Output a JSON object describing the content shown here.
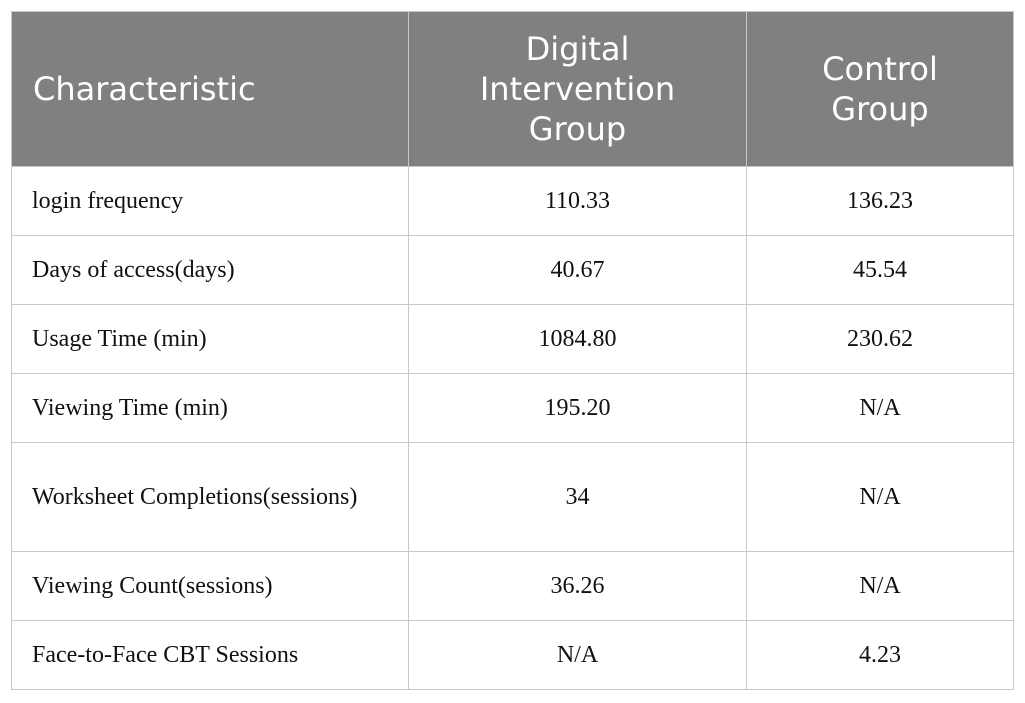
{
  "table": {
    "headers": [
      "Characteristic",
      "Digital\nIntervention\nGroup",
      "Control\nGroup"
    ],
    "rows": [
      [
        "login frequency",
        "110.33",
        "136.23"
      ],
      [
        "Days of access(days)",
        "40.67",
        "45.54"
      ],
      [
        "Usage Time (min)",
        "1084.80",
        "230.62"
      ],
      [
        "Viewing Time (min)",
        "195.20",
        "N/A"
      ],
      [
        "Worksheet Completions(sessions)",
        "34",
        "N/A"
      ],
      [
        "Viewing Count(sessions)",
        "36.26",
        "N/A"
      ],
      [
        "Face-to-Face CBT Sessions",
        "N/A",
        "4.23"
      ]
    ]
  }
}
